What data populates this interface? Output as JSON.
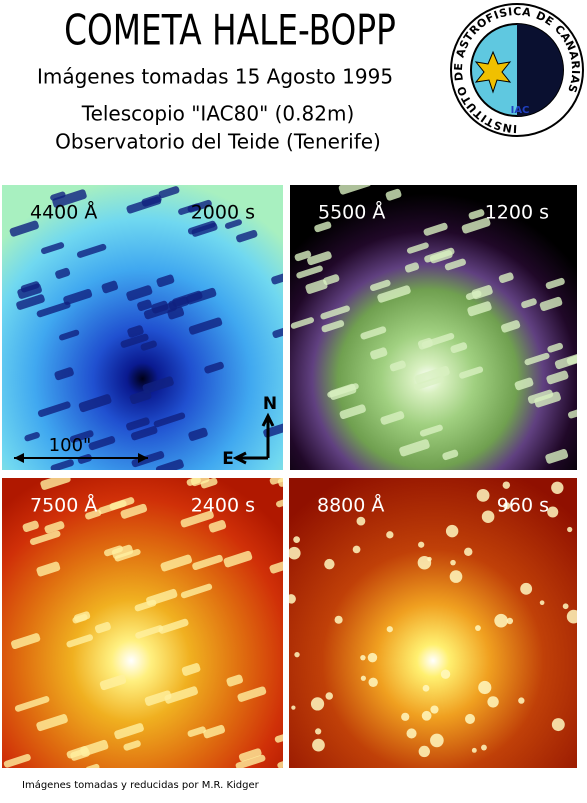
{
  "header": {
    "title": "COMETA HALE-BOPP",
    "subtitle": "Imágenes tomadas 15 Agosto 1995",
    "lines": [
      "Telescopio \"IAC80\" (0.82m)",
      "Observatorio del Teide (Tenerife)"
    ]
  },
  "logo": {
    "ring_text": "INSTITUTO DE ASTROFISICA DE CANARIAS",
    "initials": "IAC"
  },
  "panels": [
    {
      "wavelength": "4400 Å",
      "exposure": "2000 s"
    },
    {
      "wavelength": "5500 Å",
      "exposure": "1200 s"
    },
    {
      "wavelength": "7500 Å",
      "exposure": "2400 s"
    },
    {
      "wavelength": "8800 Å",
      "exposure": "960 s"
    }
  ],
  "scale_bar": {
    "label": "100\""
  },
  "compass": {
    "north": "N",
    "east": "E"
  },
  "footer": "Imágenes tomadas y reducidas por M.R. Kidger"
}
